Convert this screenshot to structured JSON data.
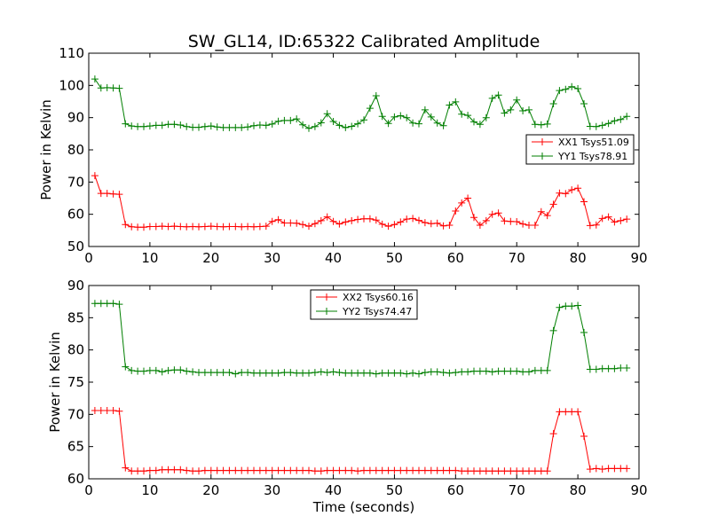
{
  "chart_data": [
    {
      "type": "line",
      "title": "SW_GL14, ID:65322 Calibrated Amplitude",
      "xlabel": "",
      "ylabel": "Power in Kelvin",
      "xlim": [
        0,
        90
      ],
      "ylim": [
        50,
        110
      ],
      "xticks": [
        "0",
        "10",
        "20",
        "30",
        "40",
        "50",
        "60",
        "70",
        "80",
        "90"
      ],
      "yticks": [
        "50",
        "60",
        "70",
        "80",
        "90",
        "100",
        "110"
      ],
      "legend_position": "center-right",
      "x": [
        1,
        2,
        3,
        4,
        5,
        6,
        7,
        8,
        9,
        10,
        11,
        12,
        13,
        14,
        15,
        16,
        17,
        18,
        19,
        20,
        21,
        22,
        23,
        24,
        25,
        26,
        27,
        28,
        29,
        30,
        31,
        32,
        33,
        34,
        35,
        36,
        37,
        38,
        39,
        40,
        41,
        42,
        43,
        44,
        45,
        46,
        47,
        48,
        49,
        50,
        51,
        52,
        53,
        54,
        55,
        56,
        57,
        58,
        59,
        60,
        61,
        62,
        63,
        64,
        65,
        66,
        67,
        68,
        69,
        70,
        71,
        72,
        73,
        74,
        75,
        76,
        77,
        78,
        79,
        80,
        81,
        82,
        83,
        84,
        85,
        86,
        87,
        88
      ],
      "series": [
        {
          "name": "XX1 Tsys51.09",
          "color": "#ff0000",
          "values": [
            72,
            66.5,
            66.5,
            66.3,
            66.2,
            56.8,
            56.1,
            56,
            56,
            56.2,
            56.2,
            56.3,
            56.2,
            56.3,
            56.2,
            56.1,
            56.2,
            56.1,
            56.2,
            56.3,
            56.2,
            56.1,
            56.2,
            56.2,
            56.1,
            56.2,
            56.1,
            56.2,
            56.3,
            57.8,
            58.3,
            57.3,
            57.3,
            57.2,
            56.8,
            56.3,
            57.1,
            58,
            59.2,
            57.8,
            57,
            57.6,
            58,
            58.4,
            58.6,
            58.6,
            58.2,
            56.9,
            56.3,
            56.8,
            57.6,
            58.5,
            58.7,
            58.1,
            57.4,
            57.1,
            57.2,
            56.4,
            56.6,
            61,
            63.5,
            65,
            59,
            56.6,
            58,
            60,
            60.4,
            57.9,
            57.8,
            57.7,
            57,
            56.6,
            56.6,
            60.8,
            59.6,
            63.1,
            66.6,
            66.4,
            67.6,
            68.1,
            63.9,
            56.5,
            56.7,
            58.7,
            59.2,
            57.6,
            58,
            58.5
          ]
        },
        {
          "name": "YY1 Tsys78.91",
          "color": "#007f00",
          "values": [
            102,
            99.2,
            99.3,
            99.2,
            99.1,
            88.1,
            87.4,
            87.2,
            87.2,
            87.4,
            87.6,
            87.6,
            87.9,
            87.9,
            87.7,
            87.2,
            87,
            87,
            87.2,
            87.4,
            87.1,
            86.9,
            86.9,
            86.9,
            86.9,
            87.1,
            87.5,
            87.7,
            87.6,
            88,
            88.9,
            89.1,
            89.1,
            89.6,
            87.8,
            86.7,
            87.2,
            88.4,
            91.2,
            88.8,
            87.6,
            86.9,
            87.3,
            88.1,
            89.3,
            92.9,
            96.8,
            90.4,
            88.2,
            90.2,
            90.6,
            90,
            88.3,
            88.1,
            92.4,
            90.2,
            88.3,
            87.5,
            93.9,
            94.9,
            91.1,
            90.7,
            88.7,
            87.9,
            90,
            96,
            97,
            91.4,
            92.4,
            95.5,
            92.1,
            92.4,
            87.9,
            87.8,
            88,
            94.3,
            98.4,
            98.8,
            99.6,
            99,
            94.3,
            87.3,
            87.2,
            87.6,
            88.2,
            89,
            89.4,
            90.4
          ]
        }
      ]
    },
    {
      "type": "line",
      "title": "",
      "xlabel": "Time (seconds)",
      "ylabel": "Power in Kelvin",
      "xlim": [
        0,
        90
      ],
      "ylim": [
        60,
        90
      ],
      "xticks": [
        "0",
        "10",
        "20",
        "30",
        "40",
        "50",
        "60",
        "70",
        "80",
        "90"
      ],
      "yticks": [
        "60",
        "65",
        "70",
        "75",
        "80",
        "85",
        "90"
      ],
      "legend_position": "top-center",
      "x": [
        1,
        2,
        3,
        4,
        5,
        6,
        7,
        8,
        9,
        10,
        11,
        12,
        13,
        14,
        15,
        16,
        17,
        18,
        19,
        20,
        21,
        22,
        23,
        24,
        25,
        26,
        27,
        28,
        29,
        30,
        31,
        32,
        33,
        34,
        35,
        36,
        37,
        38,
        39,
        40,
        41,
        42,
        43,
        44,
        45,
        46,
        47,
        48,
        49,
        50,
        51,
        52,
        53,
        54,
        55,
        56,
        57,
        58,
        59,
        60,
        61,
        62,
        63,
        64,
        65,
        66,
        67,
        68,
        69,
        70,
        71,
        72,
        73,
        74,
        75,
        76,
        77,
        78,
        79,
        80,
        81,
        82,
        83,
        84,
        85,
        86,
        87,
        88
      ],
      "series": [
        {
          "name": "XX2 Tsys60.16",
          "color": "#ff0000",
          "values": [
            70.6,
            70.6,
            70.6,
            70.6,
            70.5,
            61.7,
            61.2,
            61.2,
            61.2,
            61.3,
            61.3,
            61.4,
            61.4,
            61.4,
            61.4,
            61.3,
            61.2,
            61.2,
            61.3,
            61.3,
            61.3,
            61.3,
            61.3,
            61.3,
            61.3,
            61.3,
            61.3,
            61.3,
            61.3,
            61.3,
            61.3,
            61.3,
            61.3,
            61.3,
            61.3,
            61.3,
            61.2,
            61.2,
            61.3,
            61.3,
            61.3,
            61.3,
            61.3,
            61.2,
            61.3,
            61.3,
            61.3,
            61.3,
            61.3,
            61.3,
            61.3,
            61.3,
            61.3,
            61.3,
            61.3,
            61.3,
            61.3,
            61.3,
            61.3,
            61.3,
            61.2,
            61.2,
            61.2,
            61.2,
            61.2,
            61.2,
            61.2,
            61.2,
            61.2,
            61.2,
            61.2,
            61.2,
            61.2,
            61.2,
            61.2,
            67,
            70.4,
            70.4,
            70.4,
            70.4,
            66.6,
            61.5,
            61.6,
            61.5,
            61.6,
            61.6,
            61.6,
            61.6
          ]
        },
        {
          "name": "YY2 Tsys74.47",
          "color": "#007f00",
          "values": [
            87.2,
            87.2,
            87.2,
            87.2,
            87.1,
            77.4,
            76.8,
            76.7,
            76.7,
            76.8,
            76.8,
            76.6,
            76.8,
            76.9,
            76.9,
            76.7,
            76.6,
            76.5,
            76.5,
            76.5,
            76.5,
            76.5,
            76.5,
            76.3,
            76.5,
            76.5,
            76.4,
            76.4,
            76.4,
            76.4,
            76.4,
            76.5,
            76.5,
            76.4,
            76.4,
            76.4,
            76.5,
            76.6,
            76.5,
            76.6,
            76.5,
            76.4,
            76.4,
            76.4,
            76.4,
            76.4,
            76.3,
            76.4,
            76.4,
            76.4,
            76.4,
            76.3,
            76.4,
            76.3,
            76.5,
            76.6,
            76.6,
            76.5,
            76.4,
            76.5,
            76.6,
            76.6,
            76.7,
            76.7,
            76.7,
            76.6,
            76.7,
            76.7,
            76.7,
            76.7,
            76.6,
            76.6,
            76.8,
            76.8,
            76.8,
            83,
            86.6,
            86.8,
            86.8,
            86.9,
            82.7,
            77,
            77,
            77.1,
            77.1,
            77.1,
            77.2,
            77.2
          ]
        }
      ]
    }
  ]
}
